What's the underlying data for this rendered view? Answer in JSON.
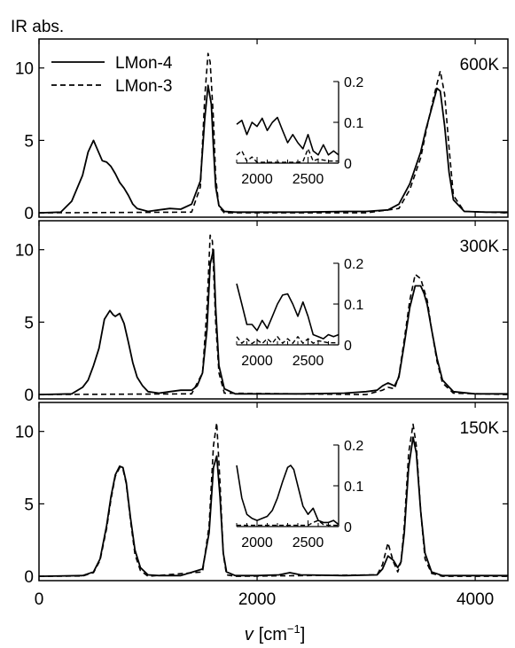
{
  "chart_data": {
    "type": "line",
    "ylabel": "IR abs.",
    "xlabel_symbol": "v",
    "xlabel_unit_prefix": "[cm",
    "xlabel_unit_exp": "−1",
    "xlabel_unit_suffix": "]",
    "xlim": [
      0,
      4300
    ],
    "x_ticks": [
      0,
      2000,
      4000
    ],
    "x_tick_labels": [
      "0",
      "2000",
      "4000"
    ],
    "ylim": [
      -0.3,
      12
    ],
    "y_ticks": [
      0,
      5,
      10
    ],
    "y_tick_labels": [
      "0",
      "5",
      "10"
    ],
    "legend": [
      {
        "label": "LMon-4",
        "style": "solid"
      },
      {
        "label": "LMon-3",
        "style": "dashed"
      }
    ],
    "inset_xlim": [
      1800,
      2800
    ],
    "inset_x_ticks": [
      2000,
      2500
    ],
    "inset_x_tick_labels": [
      "2000",
      "2500"
    ],
    "inset_ylim": [
      0,
      0.2
    ],
    "inset_y_ticks": [
      0,
      0.1,
      0.2
    ],
    "inset_y_tick_labels": [
      "0",
      "0.1",
      "0.2"
    ],
    "panels": [
      {
        "label": "600K",
        "series": [
          {
            "name": "LMon-4",
            "style": "solid",
            "x": [
              0,
              200,
              300,
              400,
              450,
              500,
              540,
              580,
              620,
              660,
              700,
              740,
              780,
              820,
              860,
              900,
              1000,
              1100,
              1200,
              1300,
              1400,
              1480,
              1520,
              1550,
              1580,
              1600,
              1620,
              1650,
              1700,
              1800,
              2000,
              2400,
              2800,
              3000,
              3200,
              3300,
              3400,
              3500,
              3550,
              3600,
              3650,
              3680,
              3720,
              3760,
              3800,
              3900,
              4100,
              4300
            ],
            "y": [
              0,
              0.05,
              0.8,
              2.6,
              4.2,
              5.0,
              4.3,
              3.6,
              3.5,
              3.2,
              2.7,
              2.1,
              1.7,
              1.2,
              0.6,
              0.3,
              0.1,
              0.2,
              0.3,
              0.25,
              0.6,
              2.2,
              6.5,
              8.8,
              7.5,
              4.5,
              1.8,
              0.5,
              0.1,
              0.05,
              0.05,
              0.05,
              0.1,
              0.1,
              0.2,
              0.6,
              2.0,
              4.2,
              5.8,
              7.2,
              8.6,
              8.4,
              6.0,
              2.8,
              0.9,
              0.1,
              0.05,
              0.05
            ]
          },
          {
            "name": "LMon-3",
            "style": "dashed",
            "x": [
              0,
              1400,
              1480,
              1520,
              1550,
              1570,
              1600,
              1620,
              1650,
              1700,
              3000,
              3300,
              3400,
              3500,
              3560,
              3620,
              3680,
              3720,
              3760,
              3800,
              3900,
              4300
            ],
            "y": [
              0,
              0.05,
              1.8,
              8.0,
              11.0,
              10.4,
              6.5,
              2.5,
              0.4,
              0.0,
              0.0,
              0.3,
              1.6,
              3.8,
              6.0,
              8.0,
              9.8,
              8.2,
              4.5,
              1.2,
              0.1,
              0.0
            ]
          }
        ],
        "inset_series": [
          {
            "name": "LMon-4",
            "style": "solid",
            "x": [
              1800,
              1850,
              1900,
              1950,
              2000,
              2050,
              2100,
              2150,
              2200,
              2250,
              2300,
              2350,
              2400,
              2450,
              2500,
              2550,
              2600,
              2650,
              2700,
              2750,
              2800
            ],
            "y": [
              0.095,
              0.105,
              0.07,
              0.1,
              0.09,
              0.11,
              0.08,
              0.1,
              0.112,
              0.08,
              0.05,
              0.07,
              0.05,
              0.035,
              0.07,
              0.03,
              0.02,
              0.045,
              0.02,
              0.03,
              0.02
            ]
          },
          {
            "name": "LMon-3",
            "style": "dashed",
            "x": [
              1800,
              1850,
              1900,
              1950,
              2000,
              2100,
              2200,
              2300,
              2400,
              2450,
              2500,
              2550,
              2600,
              2700,
              2800
            ],
            "y": [
              0.02,
              0.03,
              0.005,
              0.015,
              0.002,
              0.002,
              0.002,
              0.002,
              0.002,
              0.004,
              0.035,
              0.005,
              0.01,
              0.005,
              0.005
            ]
          }
        ]
      },
      {
        "label": "300K",
        "series": [
          {
            "name": "LMon-4",
            "style": "solid",
            "x": [
              0,
              300,
              400,
              450,
              500,
              550,
              600,
              650,
              680,
              700,
              740,
              780,
              820,
              860,
              900,
              950,
              1000,
              1100,
              1200,
              1300,
              1400,
              1450,
              1500,
              1540,
              1570,
              1600,
              1620,
              1650,
              1700,
              1800,
              2400,
              2800,
              3000,
              3100,
              3150,
              3200,
              3260,
              3300,
              3350,
              3400,
              3450,
              3500,
              3530,
              3560,
              3600,
              3650,
              3700,
              3800,
              4000,
              4300
            ],
            "y": [
              0,
              0.05,
              0.5,
              1.0,
              2.0,
              3.2,
              5.2,
              5.8,
              5.5,
              5.4,
              5.6,
              4.9,
              3.6,
              2.2,
              1.2,
              0.6,
              0.2,
              0.1,
              0.2,
              0.3,
              0.3,
              0.6,
              1.5,
              4.5,
              9.0,
              10.0,
              6.0,
              2.0,
              0.4,
              0.05,
              0.05,
              0.1,
              0.2,
              0.3,
              0.6,
              0.8,
              0.6,
              1.2,
              3.5,
              6.0,
              7.5,
              7.5,
              7.0,
              6.2,
              4.5,
              2.5,
              1.0,
              0.2,
              0.05,
              0.05
            ]
          },
          {
            "name": "LMon-3",
            "style": "dashed",
            "x": [
              0,
              1400,
              1500,
              1540,
              1570,
              1590,
              1620,
              1650,
              1700,
              3000,
              3150,
              3200,
              3260,
              3300,
              3350,
              3400,
              3450,
              3500,
              3560,
              3600,
              3650,
              3700,
              3800,
              4300
            ],
            "y": [
              0,
              0.05,
              1.5,
              6.0,
              11.0,
              10.6,
              5.0,
              1.5,
              0.1,
              0.0,
              0.3,
              0.5,
              0.4,
              1.3,
              3.8,
              6.5,
              8.3,
              8.0,
              6.5,
              4.5,
              2.3,
              0.8,
              0.1,
              0.0
            ]
          }
        ],
        "inset_series": [
          {
            "name": "LMon-4",
            "style": "solid",
            "x": [
              1800,
              1850,
              1900,
              1950,
              2000,
              2050,
              2100,
              2150,
              2200,
              2250,
              2300,
              2350,
              2400,
              2450,
              2500,
              2550,
              2600,
              2650,
              2700,
              2750,
              2800
            ],
            "y": [
              0.15,
              0.1,
              0.05,
              0.05,
              0.035,
              0.06,
              0.04,
              0.07,
              0.1,
              0.122,
              0.125,
              0.1,
              0.07,
              0.105,
              0.07,
              0.025,
              0.02,
              0.015,
              0.025,
              0.02,
              0.025
            ]
          },
          {
            "name": "LMon-3",
            "style": "dashed",
            "x": [
              1800,
              1850,
              1900,
              1950,
              2000,
              2050,
              2100,
              2150,
              2200,
              2250,
              2300,
              2350,
              2400,
              2450,
              2500,
              2550,
              2600,
              2700,
              2800
            ],
            "y": [
              0.02,
              0.004,
              0.015,
              0.003,
              0.012,
              0.003,
              0.015,
              0.004,
              0.02,
              0.004,
              0.015,
              0.004,
              0.02,
              0.004,
              0.015,
              0.004,
              0.01,
              0.005,
              0.005
            ]
          }
        ]
      },
      {
        "label": "150K",
        "series": [
          {
            "name": "LMon-4",
            "style": "solid",
            "x": [
              0,
              400,
              500,
              560,
              620,
              660,
              700,
              740,
              770,
              800,
              840,
              880,
              930,
              1000,
              1100,
              1300,
              1500,
              1560,
              1600,
              1630,
              1660,
              1690,
              1720,
              1800,
              2000,
              2200,
              2300,
              2400,
              2800,
              3100,
              3150,
              3200,
              3250,
              3290,
              3320,
              3350,
              3390,
              3430,
              3460,
              3500,
              3540,
              3600,
              3700,
              4000,
              4300
            ],
            "y": [
              0,
              0.05,
              0.3,
              1.2,
              3.5,
              5.5,
              7.0,
              7.6,
              7.5,
              6.5,
              4.0,
              1.8,
              0.6,
              0.1,
              0.05,
              0.05,
              0.5,
              3.0,
              7.5,
              8.3,
              5.5,
              1.6,
              0.3,
              0.05,
              0.05,
              0.1,
              0.25,
              0.1,
              0.05,
              0.1,
              0.5,
              1.4,
              1.1,
              0.6,
              1.0,
              3.0,
              7.5,
              9.6,
              8.5,
              4.5,
              1.6,
              0.3,
              0.05,
              0.05,
              0.05
            ]
          },
          {
            "name": "LMon-3",
            "style": "dashed",
            "x": [
              0,
              400,
              500,
              560,
              620,
              660,
              700,
              740,
              770,
              800,
              840,
              880,
              930,
              1000,
              1500,
              1560,
              1600,
              1630,
              1660,
              1690,
              1720,
              1800,
              3100,
              3150,
              3200,
              3250,
              3290,
              3320,
              3350,
              3390,
              3430,
              3460,
              3500,
              3540,
              3600,
              3700,
              4300
            ],
            "y": [
              0,
              0.02,
              0.25,
              1.1,
              3.3,
              5.3,
              6.9,
              7.5,
              7.4,
              6.4,
              3.8,
              1.5,
              0.4,
              0.0,
              0.3,
              3.5,
              9.0,
              10.6,
              6.5,
              1.5,
              0.1,
              0.0,
              0.1,
              0.8,
              2.3,
              1.0,
              0.3,
              1.0,
              3.5,
              8.5,
              10.5,
              9.0,
              4.5,
              1.2,
              0.2,
              0.0,
              0.0
            ]
          }
        ],
        "inset_series": [
          {
            "name": "LMon-4",
            "style": "solid",
            "x": [
              1800,
              1850,
              1900,
              1950,
              2000,
              2050,
              2100,
              2150,
              2200,
              2250,
              2300,
              2330,
              2360,
              2400,
              2450,
              2500,
              2550,
              2600,
              2650,
              2700,
              2750,
              2800
            ],
            "y": [
              0.15,
              0.07,
              0.03,
              0.02,
              0.015,
              0.02,
              0.025,
              0.04,
              0.07,
              0.11,
              0.145,
              0.15,
              0.14,
              0.1,
              0.05,
              0.03,
              0.045,
              0.015,
              0.01,
              0.01,
              0.015,
              0.005
            ]
          },
          {
            "name": "LMon-3",
            "style": "dashed",
            "x": [
              1800,
              1850,
              1900,
              1950,
              2000,
              2100,
              2200,
              2300,
              2400,
              2500,
              2550,
              2600,
              2650,
              2700,
              2800
            ],
            "y": [
              0.003,
              0.003,
              0.003,
              0.003,
              0.003,
              0.003,
              0.003,
              0.003,
              0.003,
              0.003,
              0.01,
              0.015,
              0.005,
              0.003,
              0.003
            ]
          }
        ]
      }
    ]
  }
}
